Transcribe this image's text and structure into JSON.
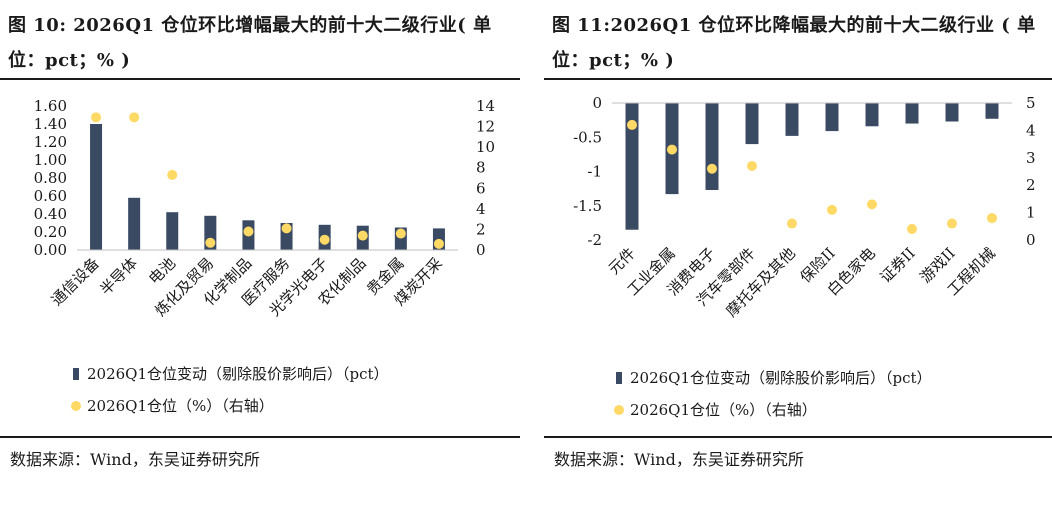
{
  "charts": {
    "left": {
      "title": "图 10: 2026Q1 仓位环比增幅最大的前十大二级行业( 单位：pct；% )",
      "source": "数据来源：Wind，东吴证券研究所"
    },
    "right": {
      "title": "图 11:2026Q1 仓位环比降幅最大的前十大二级行业 ( 单位：pct；% )",
      "source": "数据来源：Wind，东吴证券研究所"
    }
  },
  "colors": {
    "bar": "#3b4a63",
    "dot": "#ffd966"
  },
  "chart_data": [
    {
      "type": "bar",
      "title": "图 10: 2026Q1 仓位环比增幅最大的前十大二级行业( 单位：pct；% )",
      "categories": [
        "通信设备",
        "半导体",
        "电池",
        "炼化及贸易",
        "化学制品",
        "医疗服务",
        "光学光电子",
        "农化制品",
        "贵金属",
        "煤炭开采"
      ],
      "series": [
        {
          "name": "2026Q1仓位变动（剔除股价影响后）（pct）",
          "type": "bar",
          "axis": "left",
          "values": [
            1.4,
            0.58,
            0.42,
            0.38,
            0.33,
            0.3,
            0.28,
            0.27,
            0.25,
            0.24
          ]
        },
        {
          "name": "2026Q1仓位（%）（右轴）",
          "type": "scatter",
          "axis": "right",
          "values": [
            12.9,
            12.9,
            7.3,
            0.7,
            1.8,
            2.1,
            1.0,
            1.4,
            1.6,
            0.6
          ]
        }
      ],
      "yticks_left": [
        "1.60",
        "1.40",
        "1.20",
        "1.00",
        "0.80",
        "0.60",
        "0.40",
        "0.20",
        "0.00"
      ],
      "yticks_right": [
        "14",
        "12",
        "10",
        "8",
        "6",
        "4",
        "2",
        "0"
      ],
      "ylim_left": [
        0,
        1.6
      ],
      "ylim_right": [
        0,
        14
      ],
      "legend_position": "bottom-left",
      "grid": false
    },
    {
      "type": "bar",
      "title": "图 11:2026Q1 仓位环比降幅最大的前十大二级行业 ( 单位：pct；% )",
      "categories": [
        "元件",
        "工业金属",
        "消费电子",
        "汽车零部件",
        "摩托车及其他",
        "保险II",
        "白色家电",
        "证券II",
        "游戏II",
        "工程机械"
      ],
      "series": [
        {
          "name": "2026Q1仓位变动（剔除股价影响后）（pct）",
          "type": "bar",
          "axis": "left",
          "values": [
            -1.85,
            -1.33,
            -1.27,
            -0.6,
            -0.48,
            -0.41,
            -0.34,
            -0.3,
            -0.27,
            -0.23
          ]
        },
        {
          "name": "2026Q1仓位（%）（右轴）",
          "type": "scatter",
          "axis": "right",
          "values": [
            4.2,
            3.3,
            2.6,
            2.7,
            0.6,
            1.1,
            1.3,
            0.4,
            0.6,
            0.8
          ]
        }
      ],
      "yticks_left": [
        "0",
        "-0.5",
        "-1",
        "-1.5",
        "-2"
      ],
      "yticks_right": [
        "5",
        "4",
        "3",
        "2",
        "1",
        "0"
      ],
      "ylim_left": [
        -2,
        0
      ],
      "ylim_right": [
        0,
        5
      ],
      "legend_position": "bottom-left",
      "grid": false
    }
  ]
}
